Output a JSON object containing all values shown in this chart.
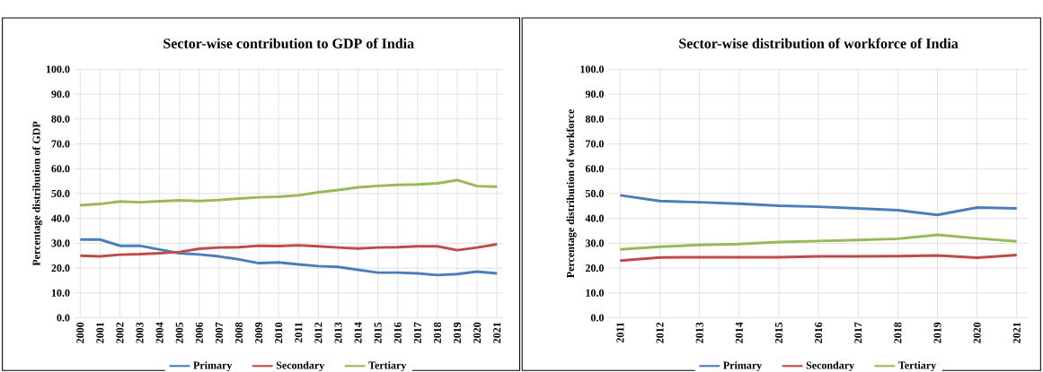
{
  "chart_data": [
    {
      "type": "line",
      "title": "Sector-wise contribution to GDP of India",
      "ylabel": "Percentage distribution of GDP",
      "categories": [
        "2000",
        "2001",
        "2002",
        "2003",
        "2004",
        "2005",
        "2006",
        "2007",
        "2008",
        "2009",
        "2010",
        "2011",
        "2012",
        "2013",
        "2014",
        "2015",
        "2016",
        "2017",
        "2018",
        "2019",
        "2020",
        "2021"
      ],
      "series": [
        {
          "name": "Primary",
          "color": "#4a7ebb",
          "values": [
            31.5,
            31.5,
            29,
            29,
            27.5,
            26,
            25.5,
            24.7,
            23.5,
            22,
            22.3,
            21.5,
            20.8,
            20.5,
            19.3,
            18.2,
            18.2,
            17.9,
            17.2,
            17.6,
            18.6,
            17.9
          ]
        },
        {
          "name": "Secondary",
          "color": "#be4b48",
          "values": [
            25,
            24.7,
            25.4,
            25.6,
            26,
            26.5,
            27.8,
            28.3,
            28.4,
            29,
            28.9,
            29.2,
            28.8,
            28.3,
            27.9,
            28.3,
            28.4,
            28.8,
            28.8,
            27.2,
            28.3,
            29.6
          ]
        },
        {
          "name": "Tertiary",
          "color": "#98b954",
          "values": [
            45.3,
            45.8,
            46.8,
            46.5,
            46.9,
            47.3,
            47,
            47.4,
            48,
            48.5,
            48.7,
            49.3,
            50.5,
            51.4,
            52.5,
            53.1,
            53.5,
            53.7,
            54.1,
            55.4,
            53,
            52.8
          ]
        }
      ],
      "ylim": [
        0,
        100
      ],
      "yticks": [
        {
          "value": 0,
          "label": "0.0"
        },
        {
          "value": 10,
          "label": "10.0"
        },
        {
          "value": 20,
          "label": "20.0"
        },
        {
          "value": 30,
          "label": "30.0"
        },
        {
          "value": 40,
          "label": "40.0"
        },
        {
          "value": 50,
          "label": "50.0"
        },
        {
          "value": 60,
          "label": "60.0"
        },
        {
          "value": 70,
          "label": "70.0"
        },
        {
          "value": 80,
          "label": "80.0"
        },
        {
          "value": 90,
          "label": "90.0"
        },
        {
          "value": 100,
          "label": "100.0"
        }
      ],
      "grid": true,
      "legend": "bottom",
      "marker": "none",
      "line_style": "solid"
    },
    {
      "type": "line",
      "title": "Sector-wise distribution of workforce of India",
      "ylabel": "Percentage distribution of workforce",
      "categories": [
        "2011",
        "2012",
        "2013",
        "2014",
        "2015",
        "2016",
        "2017",
        "2018",
        "2019",
        "2020",
        "2021"
      ],
      "series": [
        {
          "name": "Primary",
          "color": "#4a7ebb",
          "values": [
            49.3,
            47,
            46.5,
            45.9,
            45.1,
            44.7,
            44,
            43.3,
            41.4,
            44.4,
            44
          ]
        },
        {
          "name": "Secondary",
          "color": "#be4b48",
          "values": [
            23,
            24.3,
            24.4,
            24.4,
            24.4,
            24.7,
            24.7,
            24.8,
            25.1,
            24.2,
            25.3
          ]
        },
        {
          "name": "Tertiary",
          "color": "#98b954",
          "values": [
            27.5,
            28.6,
            29.3,
            29.7,
            30.5,
            30.9,
            31.3,
            31.8,
            33.4,
            32,
            30.8
          ]
        }
      ],
      "ylim": [
        0,
        100
      ],
      "yticks": [
        {
          "value": 0,
          "label": "0.0"
        },
        {
          "value": 10,
          "label": "10.0"
        },
        {
          "value": 20,
          "label": "20.0"
        },
        {
          "value": 30,
          "label": "30.0"
        },
        {
          "value": 40,
          "label": "40.0"
        },
        {
          "value": 50,
          "label": "50.0"
        },
        {
          "value": 60,
          "label": "60.0"
        },
        {
          "value": 70,
          "label": "70.0"
        },
        {
          "value": 80,
          "label": "80.0"
        },
        {
          "value": 90,
          "label": "90.0"
        },
        {
          "value": 100,
          "label": "100.0"
        }
      ],
      "grid": true,
      "legend": "bottom",
      "marker": "none",
      "line_style": "solid"
    }
  ]
}
